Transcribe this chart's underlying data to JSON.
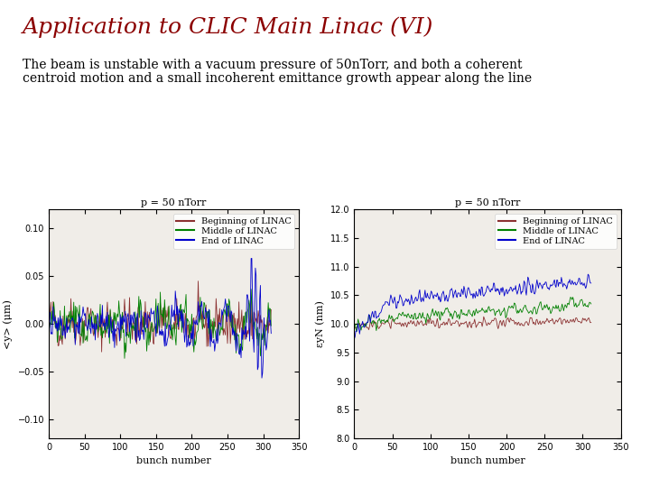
{
  "title": "Application to CLIC Main Linac (VI)",
  "title_color": "#8B0000",
  "title_fontsize": 18,
  "subtitle_line1": "The beam is unstable with a vacuum pressure of 50nTorr, and both a coherent",
  "subtitle_line2": "centroid motion and a small incoherent emittance growth appear along the line",
  "subtitle_fontsize": 10,
  "plot1_title": "p = 50 nTorr",
  "plot2_title": "p = 50 nTorr",
  "xlabel": "bunch number",
  "ylabel1": "<y> (μm)",
  "ylabel2": "εyN (nm)",
  "plot1_xlim": [
    0,
    350
  ],
  "plot1_ylim": [
    -0.12,
    0.12
  ],
  "plot1_yticks": [
    -0.1,
    -0.05,
    0,
    0.05,
    0.1
  ],
  "plot1_xticks": [
    0,
    50,
    100,
    150,
    200,
    250,
    300,
    350
  ],
  "plot2_xlim": [
    0,
    350
  ],
  "plot2_ylim": [
    8.0,
    12.0
  ],
  "plot2_yticks": [
    8.0,
    8.5,
    9.0,
    9.5,
    10.0,
    10.5,
    11.0,
    11.5,
    12.0
  ],
  "plot2_xticks": [
    0,
    50,
    100,
    150,
    200,
    250,
    300,
    350
  ],
  "color_beginning": "#8B3030",
  "color_middle": "#008000",
  "color_end": "#0000CC",
  "legend_labels": [
    "Beginning of LINAC",
    "Middle of LINAC",
    "End of LINAC"
  ],
  "n_bunches": 312,
  "seed": 42,
  "plot_bg": "#f0ede8",
  "tick_fontsize": 7,
  "axis_label_fontsize": 8,
  "title_plot_fontsize": 8,
  "legend_fontsize": 7
}
